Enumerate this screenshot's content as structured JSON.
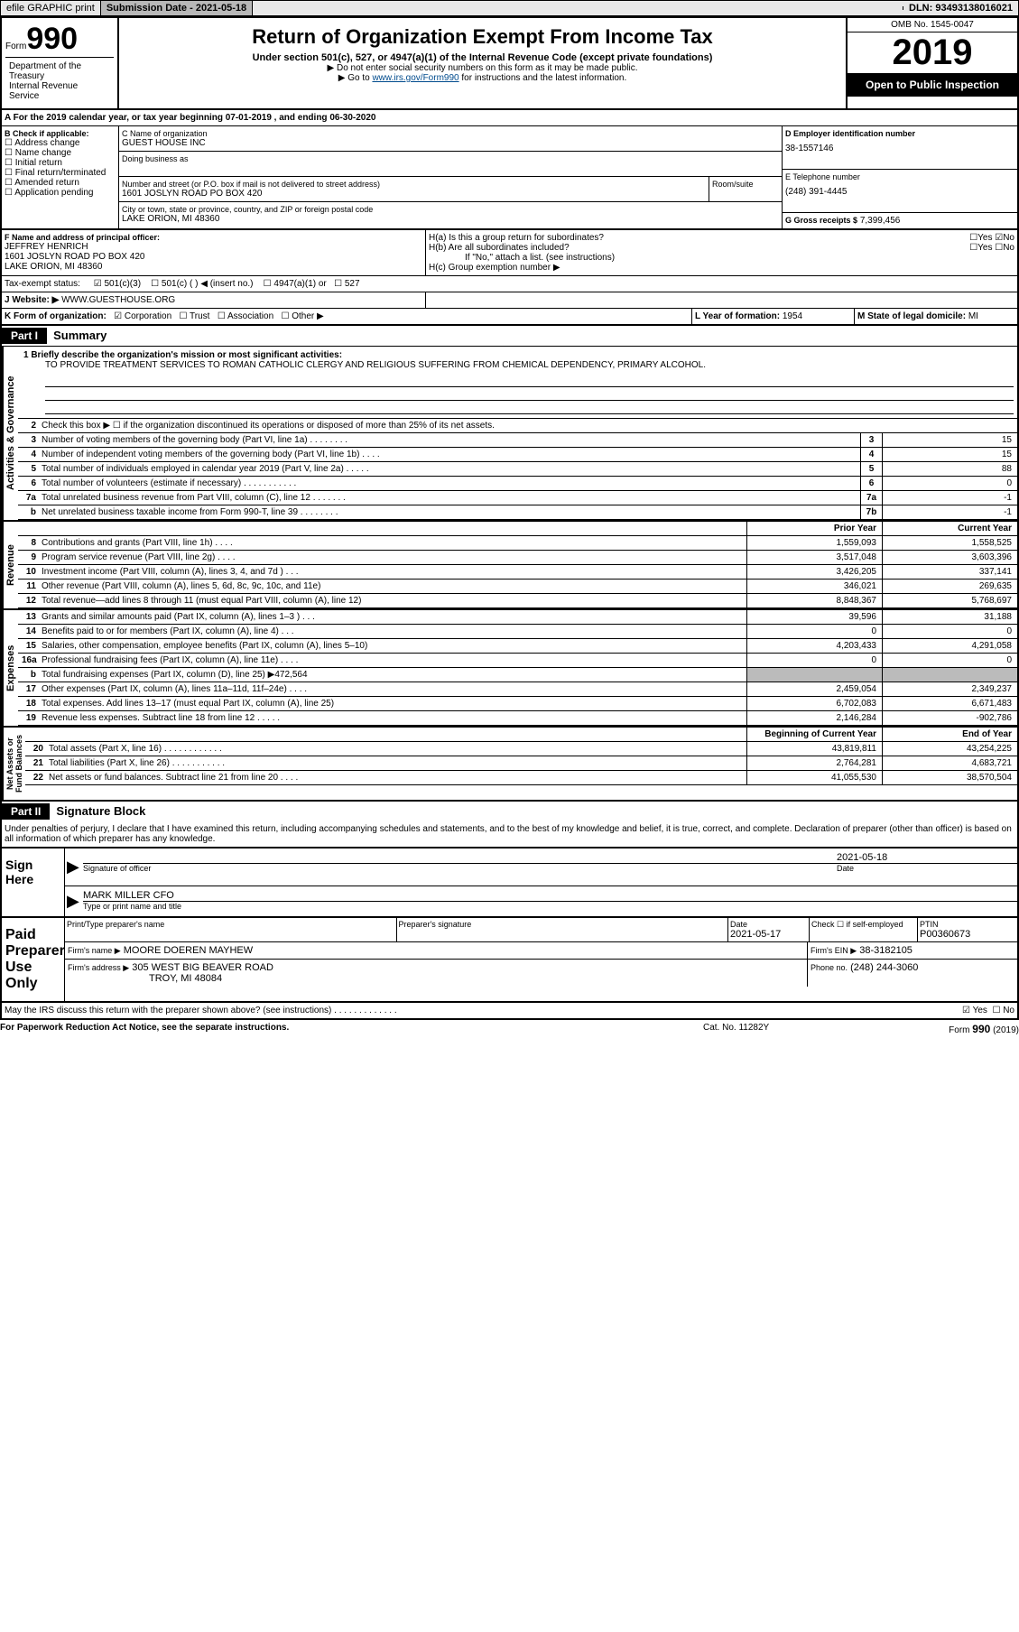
{
  "topBar": {
    "efile": "efile GRAPHIC print",
    "submissionLabel": "Submission Date - 2021-05-18",
    "dln": "DLN: 93493138016021"
  },
  "header": {
    "formPrefix": "Form",
    "formNum": "990",
    "dept": "Department of the Treasury\nInternal Revenue Service",
    "title": "Return of Organization Exempt From Income Tax",
    "subtitle": "Under section 501(c), 527, or 4947(a)(1) of the Internal Revenue Code (except private foundations)",
    "note1": "▶ Do not enter social security numbers on this form as it may be made public.",
    "note2Prefix": "▶ Go to ",
    "note2Link": "www.irs.gov/Form990",
    "note2Suffix": " for instructions and the latest information.",
    "omb": "OMB No. 1545-0047",
    "year": "2019",
    "public": "Open to Public Inspection"
  },
  "lineA": "A For the 2019 calendar year, or tax year beginning 07-01-2019    , and ending 06-30-2020",
  "sectionB": {
    "label": "B Check if applicable:",
    "items": [
      "Address change",
      "Name change",
      "Initial return",
      "Final return/terminated",
      "Amended return",
      "Application pending"
    ]
  },
  "sectionC": {
    "nameLabel": "C Name of organization",
    "name": "GUEST HOUSE INC",
    "dbaLabel": "Doing business as",
    "addrLabel": "Number and street (or P.O. box if mail is not delivered to street address)",
    "roomLabel": "Room/suite",
    "addr": "1601 JOSLYN ROAD PO BOX 420",
    "cityLabel": "City or town, state or province, country, and ZIP or foreign postal code",
    "city": "LAKE ORION, MI  48360"
  },
  "sectionD": {
    "label": "D Employer identification number",
    "ein": "38-1557146",
    "telLabel": "E Telephone number",
    "tel": "(248) 391-4445",
    "grossLabel": "G Gross receipts $",
    "gross": "7,399,456"
  },
  "sectionF": {
    "label": "F  Name and address of principal officer:",
    "name": "JEFFREY HENRICH",
    "addr1": "1601 JOSLYN ROAD PO BOX 420",
    "addr2": "LAKE ORION, MI  48360"
  },
  "sectionH": {
    "ha": "H(a)  Is this a group return for subordinates?",
    "hb": "H(b)  Are all subordinates included?",
    "hbNote": "If \"No,\" attach a list. (see instructions)",
    "hc": "H(c)  Group exemption number ▶"
  },
  "taxExempt": {
    "label": "Tax-exempt status:",
    "opts": [
      "501(c)(3)",
      "501(c) (  ) ◀ (insert no.)",
      "4947(a)(1) or",
      "527"
    ]
  },
  "website": {
    "label": "J    Website: ▶",
    "val": "WWW.GUESTHOUSE.ORG"
  },
  "sectionK": {
    "label": "K Form of organization:",
    "opts": [
      "Corporation",
      "Trust",
      "Association",
      "Other ▶"
    ]
  },
  "sectionL": {
    "label": "L Year of formation:",
    "val": "1954"
  },
  "sectionM": {
    "label": "M State of legal domicile:",
    "val": "MI"
  },
  "part1": {
    "label": "Part I",
    "title": "Summary",
    "vert1": "Activities & Governance",
    "line1Label": "1   Briefly describe the organization's mission or most significant activities:",
    "line1Text": "TO PROVIDE TREATMENT SERVICES TO ROMAN CATHOLIC CLERGY AND RELIGIOUS SUFFERING FROM CHEMICAL DEPENDENCY, PRIMARY ALCOHOL.",
    "line2": "Check this box ▶ ☐  if the organization discontinued its operations or disposed of more than 25% of its net assets.",
    "lines_gov": [
      {
        "n": "3",
        "t": "Number of voting members of the governing body (Part VI, line 1a)   .    .    .    .    .    .    .    .",
        "b": "3",
        "v": "15"
      },
      {
        "n": "4",
        "t": "Number of independent voting members of the governing body (Part VI, line 1b)   .    .    .    .",
        "b": "4",
        "v": "15"
      },
      {
        "n": "5",
        "t": "Total number of individuals employed in calendar year 2019 (Part V, line 2a)   .    .    .    .    .",
        "b": "5",
        "v": "88"
      },
      {
        "n": "6",
        "t": "Total number of volunteers (estimate if necessary)    .    .    .    .    .    .    .    .    .    .    .",
        "b": "6",
        "v": "0"
      },
      {
        "n": "7a",
        "t": "Total unrelated business revenue from Part VIII, column (C), line 12   .    .    .    .    .    .    .",
        "b": "7a",
        "v": "-1"
      },
      {
        "n": "b",
        "t": "Net unrelated business taxable income from Form 990-T, line 39    .    .    .    .    .    .    .    .",
        "b": "7b",
        "v": "-1"
      }
    ],
    "vert2": "Revenue",
    "colHdr": {
      "prior": "Prior Year",
      "current": "Current Year"
    },
    "lines_rev": [
      {
        "n": "8",
        "t": "Contributions and grants (Part VIII, line 1h)    .    .    .    .",
        "p": "1,559,093",
        "c": "1,558,525"
      },
      {
        "n": "9",
        "t": "Program service revenue (Part VIII, line 2g)   .    .    .    .",
        "p": "3,517,048",
        "c": "3,603,396"
      },
      {
        "n": "10",
        "t": "Investment income (Part VIII, column (A), lines 3, 4, and 7d )    .    .    .",
        "p": "3,426,205",
        "c": "337,141"
      },
      {
        "n": "11",
        "t": "Other revenue (Part VIII, column (A), lines 5, 6d, 8c, 9c, 10c, and 11e)",
        "p": "346,021",
        "c": "269,635"
      },
      {
        "n": "12",
        "t": "Total revenue—add lines 8 through 11 (must equal Part VIII, column (A), line 12)",
        "p": "8,848,367",
        "c": "5,768,697"
      }
    ],
    "vert3": "Expenses",
    "lines_exp": [
      {
        "n": "13",
        "t": "Grants and similar amounts paid (Part IX, column (A), lines 1–3 )   .    .    .",
        "p": "39,596",
        "c": "31,188"
      },
      {
        "n": "14",
        "t": "Benefits paid to or for members (Part IX, column (A), line 4)   .    .    .",
        "p": "0",
        "c": "0"
      },
      {
        "n": "15",
        "t": "Salaries, other compensation, employee benefits (Part IX, column (A), lines 5–10)",
        "p": "4,203,433",
        "c": "4,291,058"
      },
      {
        "n": "16a",
        "t": "Professional fundraising fees (Part IX, column (A), line 11e)   .    .    .    .",
        "p": "0",
        "c": "0"
      },
      {
        "n": "b",
        "t": "Total fundraising expenses (Part IX, column (D), line 25) ▶472,564",
        "p": "",
        "c": "",
        "grey": true
      },
      {
        "n": "17",
        "t": "Other expenses (Part IX, column (A), lines 11a–11d, 11f–24e)   .    .    .    .",
        "p": "2,459,054",
        "c": "2,349,237"
      },
      {
        "n": "18",
        "t": "Total expenses. Add lines 13–17 (must equal Part IX, column (A), line 25)",
        "p": "6,702,083",
        "c": "6,671,483"
      },
      {
        "n": "19",
        "t": "Revenue less expenses. Subtract line 18 from line 12   .    .    .    .    .",
        "p": "2,146,284",
        "c": "-902,786"
      }
    ],
    "vert4": "Net Assets or\nFund Balances",
    "colHdr2": {
      "prior": "Beginning of Current Year",
      "current": "End of Year"
    },
    "lines_net": [
      {
        "n": "20",
        "t": "Total assets (Part X, line 16)   .    .    .    .    .    .    .    .    .    .    .    .",
        "p": "43,819,811",
        "c": "43,254,225"
      },
      {
        "n": "21",
        "t": "Total liabilities (Part X, line 26)   .    .    .    .    .    .    .    .    .    .    .",
        "p": "2,764,281",
        "c": "4,683,721"
      },
      {
        "n": "22",
        "t": "Net assets or fund balances. Subtract line 21 from line 20   .    .    .    .",
        "p": "41,055,530",
        "c": "38,570,504"
      }
    ]
  },
  "part2": {
    "label": "Part II",
    "title": "Signature Block",
    "decl": "Under penalties of perjury, I declare that I have examined this return, including accompanying schedules and statements, and to the best of my knowledge and belief, it is true, correct, and complete. Declaration of preparer (other than officer) is based on all information of which preparer has any knowledge.",
    "signHere": "Sign Here",
    "sigOfficer": "Signature of officer",
    "sigDate": "2021-05-18",
    "sigDateLabel": "Date",
    "typedName": "MARK MILLER  CFO",
    "typedLabel": "Type or print name and title",
    "paidPrep": "Paid Preparer Use Only",
    "prepNameLabel": "Print/Type preparer's name",
    "prepSigLabel": "Preparer's signature",
    "prepDateLabel": "Date",
    "prepDate": "2021-05-17",
    "prepCheckLabel": "Check ☐ if self-employed",
    "ptinLabel": "PTIN",
    "ptin": "P00360673",
    "firmNameLabel": "Firm's name    ▶",
    "firmName": "MOORE DOEREN MAYHEW",
    "firmEinLabel": "Firm's EIN ▶",
    "firmEin": "38-3182105",
    "firmAddrLabel": "Firm's address ▶",
    "firmAddr1": "305 WEST BIG BEAVER ROAD",
    "firmAddr2": "TROY, MI  48084",
    "phoneLabel": "Phone no.",
    "phone": "(248) 244-3060",
    "discuss": "May the IRS discuss this return with the preparer shown above? (see instructions)   .    .    .    .    .    .    .    .    .    .    .    .    ."
  },
  "footer": {
    "left": "For Paperwork Reduction Act Notice, see the separate instructions.",
    "mid": "Cat. No. 11282Y",
    "right": "Form 990 (2019)"
  },
  "glyphs": {
    "checkboxEmpty": "☐",
    "checkboxChecked": "☑",
    "yes": "Yes",
    "no": "No",
    "arrow": "▶"
  }
}
